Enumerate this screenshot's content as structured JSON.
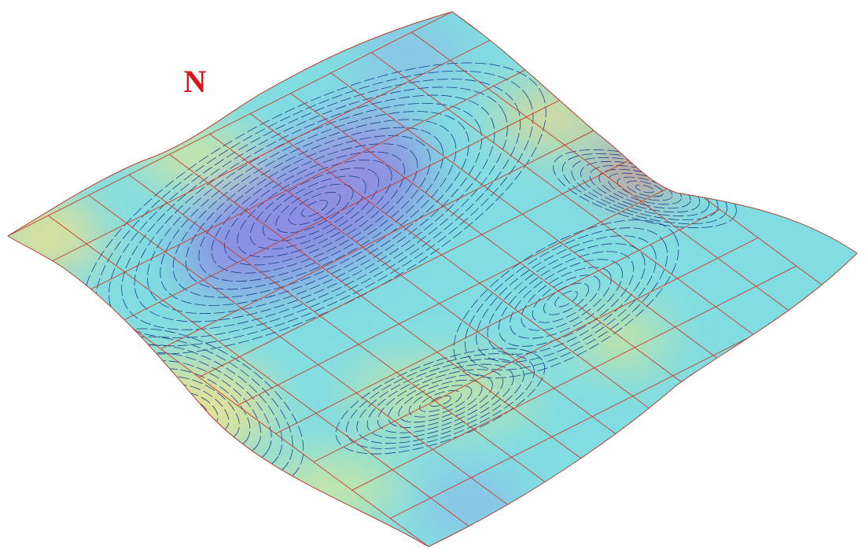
{
  "north_label": "N"
}
